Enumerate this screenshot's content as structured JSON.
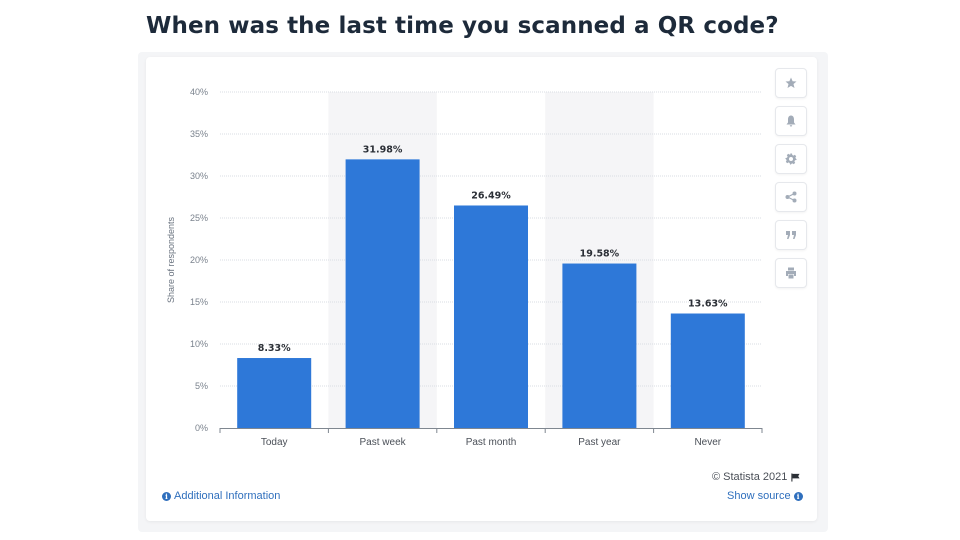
{
  "title": "When was the last time you scanned a QR code?",
  "chart_data": {
    "type": "bar",
    "categories": [
      "Today",
      "Past week",
      "Past month",
      "Past year",
      "Never"
    ],
    "values": [
      8.33,
      31.98,
      26.49,
      19.58,
      13.63
    ],
    "value_labels": [
      "8.33%",
      "31.98%",
      "26.49%",
      "19.58%",
      "13.63%"
    ],
    "ylabel": "Share of respondents",
    "ylim": [
      0,
      40
    ],
    "yticks": [
      0,
      5,
      10,
      15,
      20,
      25,
      30,
      35,
      40
    ],
    "ytick_labels": [
      "0%",
      "5%",
      "10%",
      "15%",
      "20%",
      "25%",
      "30%",
      "35%",
      "40%"
    ],
    "grid": true,
    "bar_color": "#2e78d8",
    "alt_band_color": "#f5f5f7"
  },
  "toolbar": [
    "star-icon",
    "bell-icon",
    "gear-icon",
    "share-icon",
    "quote-icon",
    "print-icon"
  ],
  "footer": {
    "credit": "© Statista 2021",
    "additional_info": "Additional Information",
    "show_source": "Show source",
    "info_glyph": "i"
  }
}
